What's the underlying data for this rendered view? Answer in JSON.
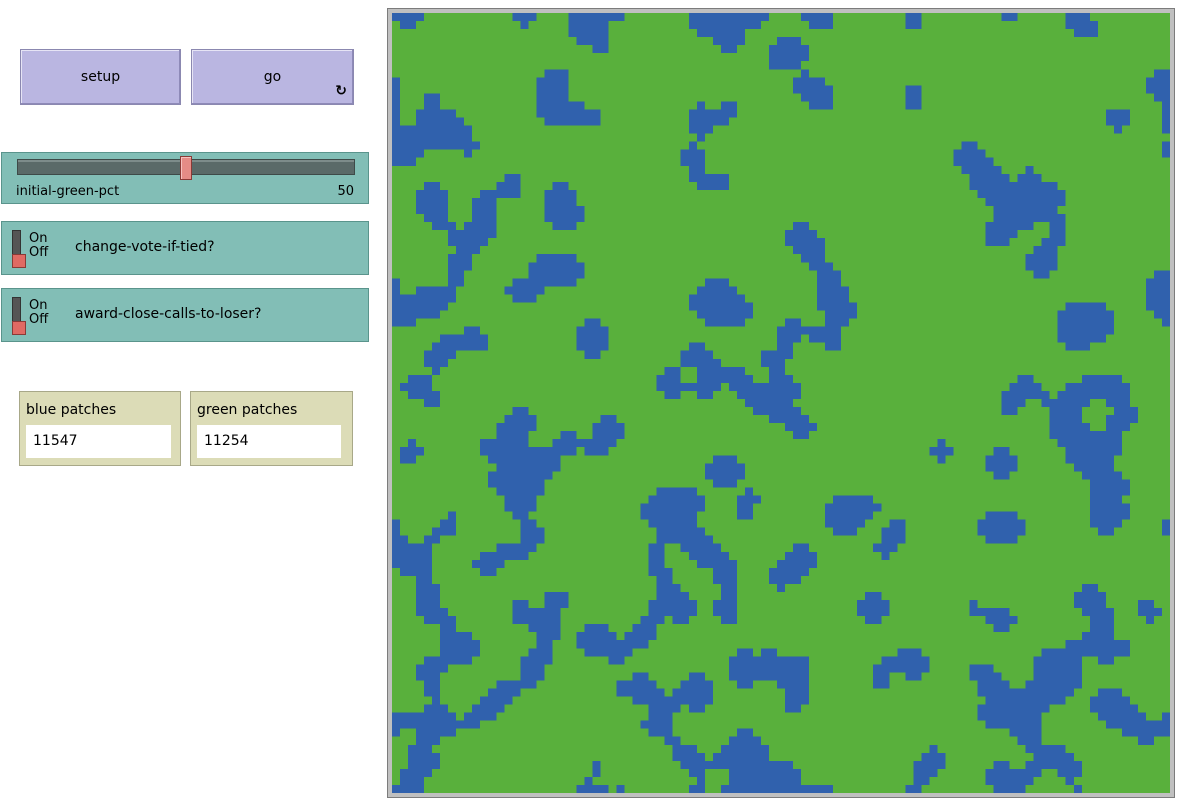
{
  "buttons": {
    "setup": {
      "label": "setup"
    },
    "go": {
      "label": "go",
      "forever_icon": "forever-loop-icon"
    }
  },
  "slider": {
    "name": "initial-green-pct",
    "value": "50",
    "min": 0,
    "max": 100
  },
  "switches": [
    {
      "name": "change-vote-if-tied?",
      "on_label": "On",
      "off_label": "Off",
      "state": "off"
    },
    {
      "name": "award-close-calls-to-loser?",
      "on_label": "On",
      "off_label": "Off",
      "state": "off"
    }
  ],
  "monitors": {
    "blue": {
      "label": "blue patches",
      "value": "11547"
    },
    "green": {
      "label": "green patches",
      "value": "11254"
    }
  },
  "world": {
    "colors": {
      "blue": "#3061ad",
      "green": "#59b03c",
      "frame": "#c0c0c0"
    }
  }
}
